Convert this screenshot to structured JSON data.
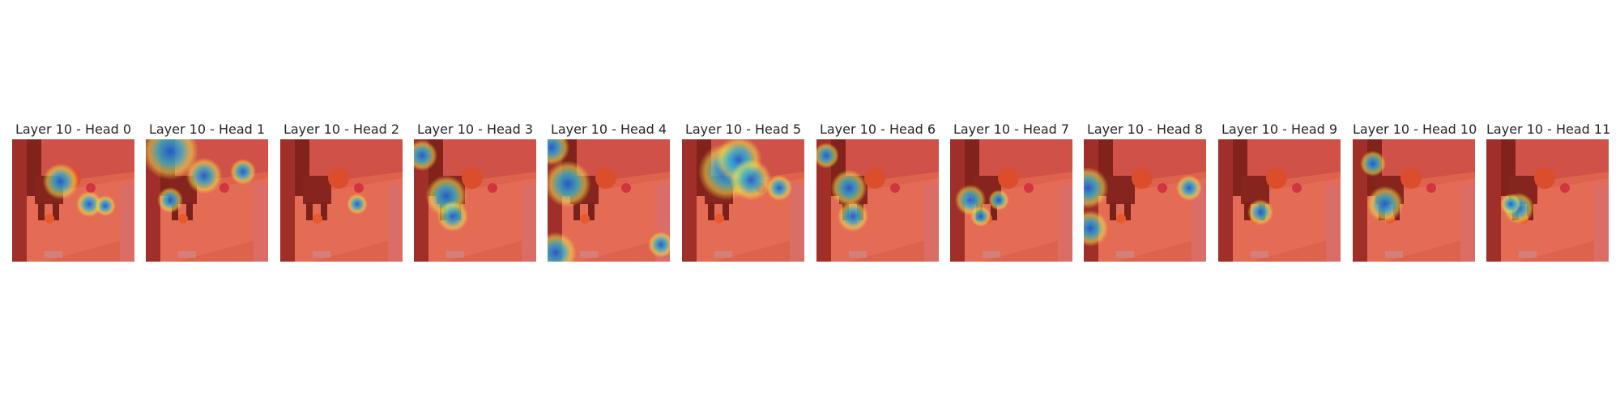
{
  "figure": {
    "panels": [
      {
        "title": "Layer 10 - Head 0"
      },
      {
        "title": "Layer 10 - Head 1"
      },
      {
        "title": "Layer 10 - Head 2"
      },
      {
        "title": "Layer 10 - Head 3"
      },
      {
        "title": "Layer 10 - Head 4"
      },
      {
        "title": "Layer 10 - Head 5"
      },
      {
        "title": "Layer 10 - Head 6"
      },
      {
        "title": "Layer 10 - Head 7"
      },
      {
        "title": "Layer 10 - Head 8"
      },
      {
        "title": "Layer 10 - Head 9"
      },
      {
        "title": "Layer 10 - Head 10"
      },
      {
        "title": "Layer 10 - Head 11"
      }
    ],
    "colors": {
      "heatmap_low": "#1e5bd6",
      "heatmap_mid": "#f2e14b",
      "heatmap_high": "#e8392e",
      "background": "#ffffff"
    }
  }
}
